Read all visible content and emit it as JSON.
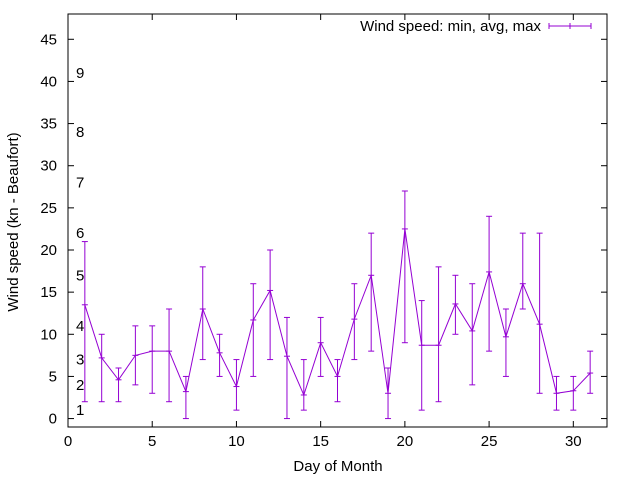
{
  "chart_data": {
    "type": "line",
    "title": "",
    "xlabel": "Day of Month",
    "ylabel": "Wind speed (kn - Beaufort)",
    "xlim": [
      0,
      32
    ],
    "ylim": [
      -1,
      48
    ],
    "xticks": [
      0,
      5,
      10,
      15,
      20,
      25,
      30
    ],
    "yticks": [
      0,
      5,
      10,
      15,
      20,
      25,
      30,
      35,
      40,
      45
    ],
    "grid": false,
    "legend_position": "top-right",
    "series": [
      {
        "name": "Wind speed: min, avg, max",
        "color": "#9400d3",
        "x": [
          1,
          2,
          3,
          4,
          5,
          6,
          7,
          8,
          9,
          10,
          11,
          12,
          13,
          14,
          15,
          16,
          17,
          18,
          19,
          20,
          21,
          22,
          23,
          24,
          25,
          26,
          27,
          28,
          29,
          30,
          31
        ],
        "min": [
          2,
          2,
          2,
          4,
          3,
          2,
          0,
          7,
          5,
          1,
          5,
          7,
          0,
          1,
          5,
          2,
          7,
          8,
          0,
          9,
          1,
          2,
          10,
          4,
          8,
          5,
          13,
          3,
          1,
          1,
          3
        ],
        "avg": [
          13.5,
          7.2,
          4.6,
          7.5,
          8,
          8,
          3.2,
          13,
          7.8,
          3.8,
          11.7,
          15.2,
          7.4,
          2.8,
          9,
          5,
          11.8,
          17,
          3,
          22.5,
          8.7,
          8.7,
          13.6,
          10.4,
          17.4,
          9.7,
          16,
          11.2,
          3,
          3.3,
          5.4
        ],
        "max": [
          21,
          10,
          6,
          11,
          11,
          13,
          5,
          18,
          10,
          7,
          16,
          20,
          12,
          7,
          12,
          7,
          16,
          22,
          6,
          27,
          14,
          18,
          17,
          16,
          24,
          13,
          22,
          22,
          5,
          5,
          8
        ]
      }
    ],
    "beaufort_labels": [
      {
        "label": "1",
        "y": 1
      },
      {
        "label": "2",
        "y": 4
      },
      {
        "label": "3",
        "y": 7
      },
      {
        "label": "4",
        "y": 11
      },
      {
        "label": "5",
        "y": 17
      },
      {
        "label": "6",
        "y": 22
      },
      {
        "label": "7",
        "y": 28
      },
      {
        "label": "8",
        "y": 34
      },
      {
        "label": "9",
        "y": 41
      }
    ]
  }
}
